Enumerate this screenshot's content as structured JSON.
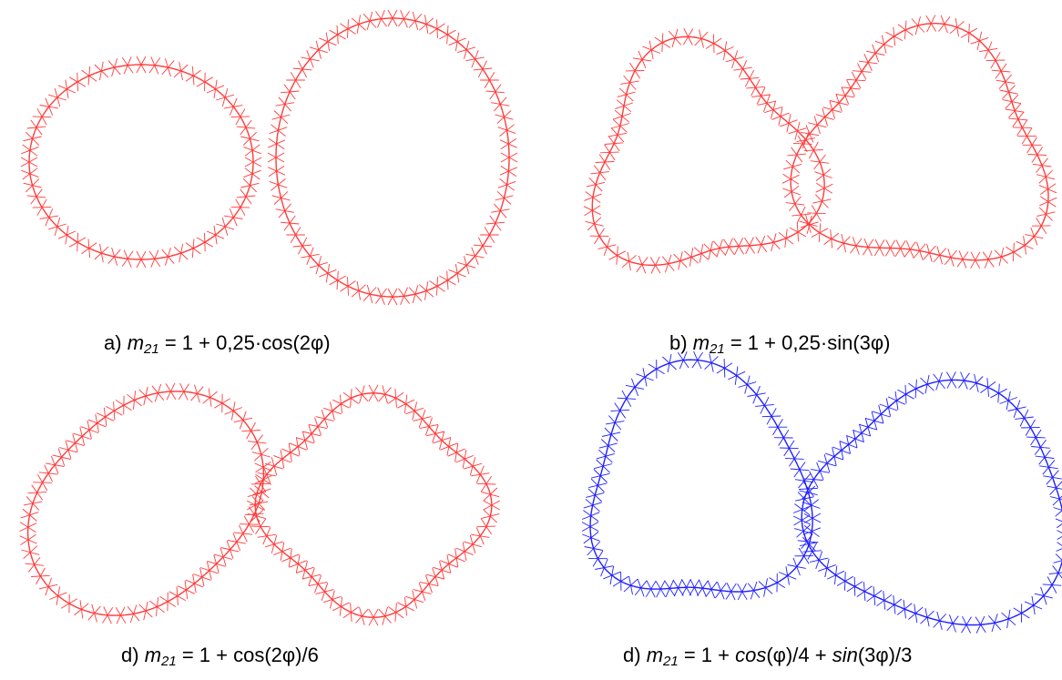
{
  "panels": [
    {
      "label": "a)",
      "var": "m",
      "sub": "21",
      "eq_tail": " = 1 + 0,25·cos(2φ)",
      "color": "#ff3b3b"
    },
    {
      "label": "b)",
      "var": "m",
      "sub": "21",
      "eq_tail": " = 1 + 0,25·sin(3φ)",
      "color": "#ff3b3b"
    },
    {
      "label": "d)",
      "var": "m",
      "sub": "21",
      "eq_tail": " = 1 + cos(2φ)/6",
      "color": "#ff3b3b"
    },
    {
      "label": "d)",
      "var": "m",
      "sub": "21",
      "eq_tail_1": " = 1 + ",
      "cos_word": "cos",
      "eq_tail_2": "(φ)/4 + ",
      "sin_word": "sin",
      "eq_tail_3": "(3φ)/3",
      "color": "#1f1fff"
    }
  ]
}
